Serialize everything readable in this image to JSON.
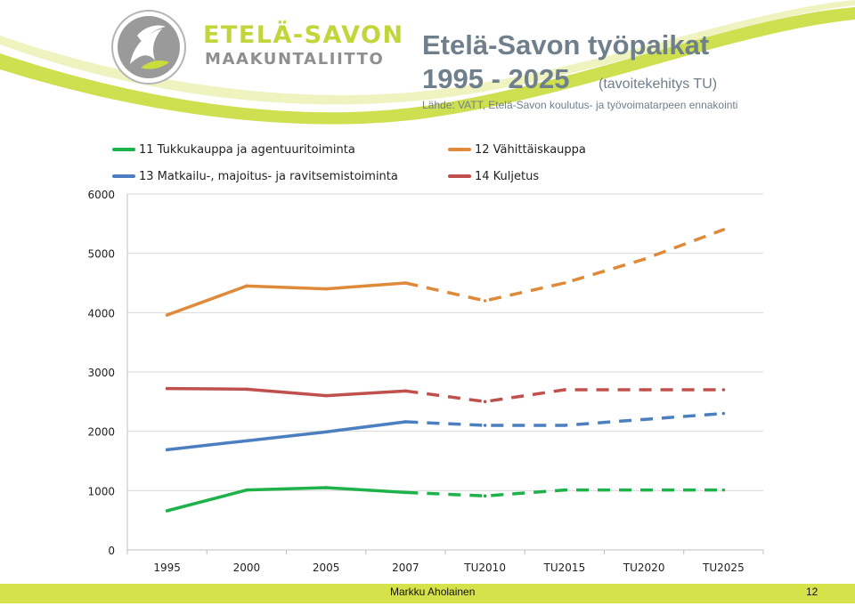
{
  "logo": {
    "line1": "ETELÄ-SAVON",
    "line2": "MAAKUNTALIITTO",
    "icon": "etela-savo-logo-icon"
  },
  "header": {
    "title_line1": "Etelä-Savon työpaikat",
    "title_line2": "1995 - 2025",
    "subtitle": "(tavoitekehitys TU)",
    "source": "Lähde: VATT, Etelä-Savon koulutus- ja työvoimatarpeen ennakointi"
  },
  "footer": {
    "author": "Markku Aholainen",
    "page": "12"
  },
  "colors": {
    "accent_green": "#c9dc3c",
    "footer_bar": "#d5e24a",
    "title": "#6f7f8c",
    "gridline": "#d9d9d9"
  },
  "chart_data": {
    "type": "line",
    "title": "",
    "xlabel": "",
    "ylabel": "",
    "categories": [
      "1995",
      "2000",
      "2005",
      "2007",
      "TU2010",
      "TU2015",
      "TU2020",
      "TU2025"
    ],
    "y_ticks": [
      "0",
      "1000",
      "2000",
      "3000",
      "4000",
      "5000",
      "6000"
    ],
    "ylim": [
      0,
      6000
    ],
    "grid": true,
    "legend_position": "top",
    "dashed_from_index": 3,
    "series": [
      {
        "name": "11 Tukkukauppa ja agentuuritoiminta",
        "color": "#1fb24a",
        "values": [
          660,
          1010,
          1050,
          970,
          910,
          1010,
          1010,
          1010
        ]
      },
      {
        "name": "12 Vähittäiskauppa",
        "color": "#de8a3a",
        "values": [
          3960,
          4450,
          4400,
          4500,
          4200,
          4500,
          4900,
          5400
        ]
      },
      {
        "name": "13 Matkailu-, majoitus- ja ravitsemistoiminta",
        "color": "#4c7fbf",
        "values": [
          1690,
          1840,
          1990,
          2160,
          2100,
          2100,
          2200,
          2300
        ]
      },
      {
        "name": "14 Kuljetus",
        "color": "#c0504d",
        "values": [
          2720,
          2710,
          2600,
          2680,
          2500,
          2700,
          2700,
          2700
        ]
      }
    ]
  }
}
